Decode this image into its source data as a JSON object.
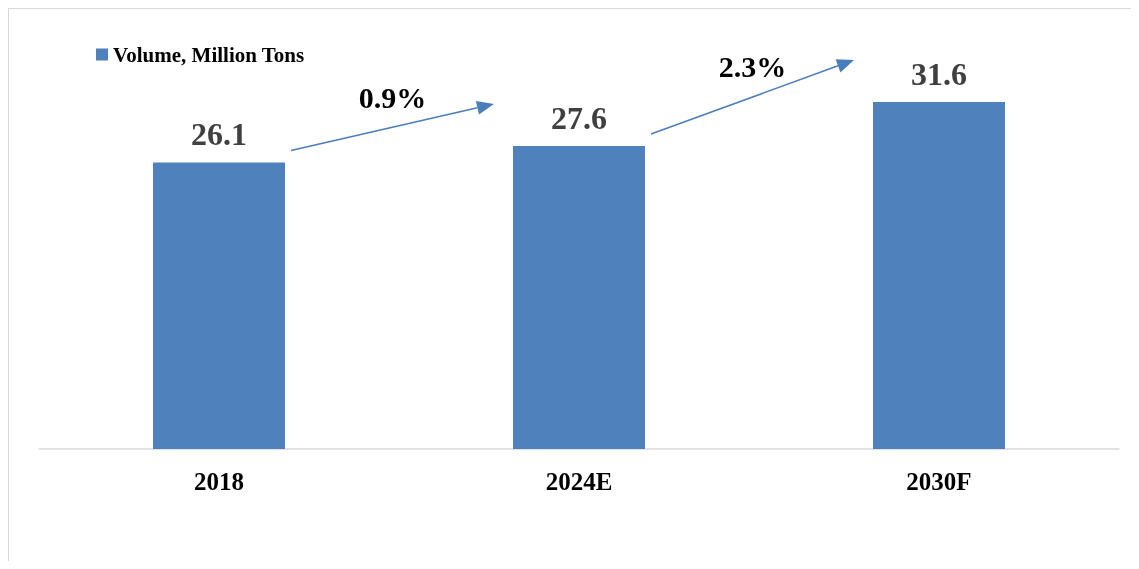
{
  "chart_data": {
    "type": "bar",
    "categories": [
      "2018",
      "2024E",
      "2030F"
    ],
    "series": [
      {
        "name": "Volume, Million Tons",
        "color": "#4f81bd",
        "values": [
          26.1,
          27.6,
          31.6
        ]
      }
    ],
    "data_labels": true,
    "legend": "top left",
    "annotations": [
      "0.9%",
      "2.3%"
    ]
  }
}
